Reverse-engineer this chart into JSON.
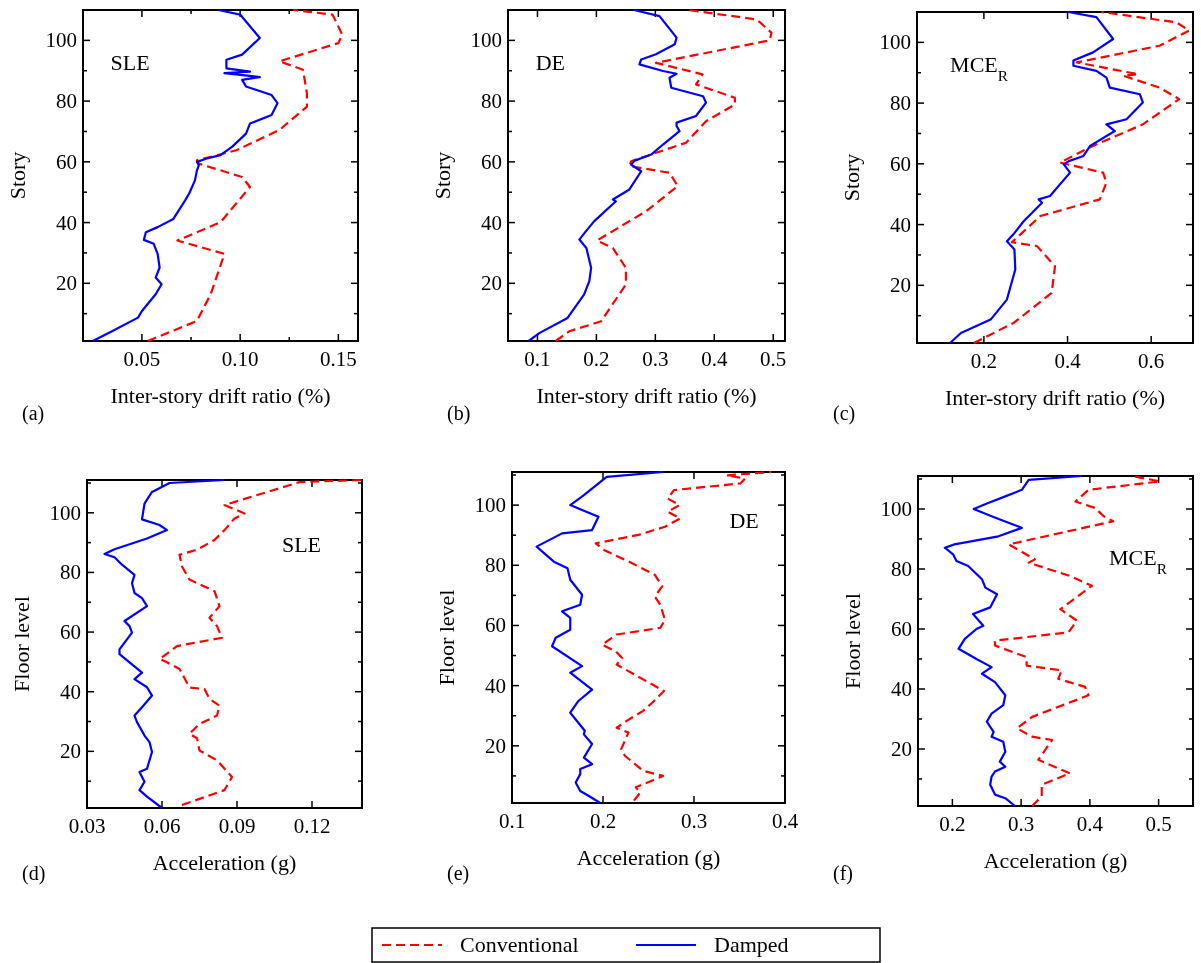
{
  "chart_data": [
    {
      "type": "line",
      "xlabel": "Inter-story drift ratio (%)",
      "ylabel": "Story",
      "annotations": [
        "(a)",
        "SLE"
      ],
      "legend": "bottom",
      "xlim": [
        0.02,
        0.16
      ],
      "xticks": [
        0.05,
        {
          "value": 0.075,
          "label": null
        },
        {
          "value": 0.1,
          "label": "0.10"
        },
        {
          "value": 0.125,
          "label": null
        },
        0.15
      ],
      "ylim": [
        1,
        110
      ],
      "yticks": [
        {
          "value": 10,
          "label": null
        },
        20,
        {
          "value": 30,
          "label": null
        },
        40,
        {
          "value": 50,
          "label": null
        },
        60,
        {
          "value": 70,
          "label": null
        },
        80,
        {
          "value": 90,
          "label": null
        },
        100
      ],
      "series": [
        {
          "name": "Conventional",
          "color": "#ff0000",
          "line_style": "dashed",
          "x": [
            0.053,
            0.078,
            0.085,
            0.092,
            0.068,
            0.09,
            0.105,
            0.101,
            0.079,
            0.078,
            0.098,
            0.12,
            0.134,
            0.134,
            0.132,
            0.12,
            0.15,
            0.152,
            0.147,
            0.127
          ],
          "values": [
            1,
            7.6,
            16.4,
            29.7,
            34.1,
            40.1,
            51.7,
            55,
            59.4,
            60.5,
            63.8,
            70.5,
            78.2,
            82.6,
            90.3,
            93.1,
            99.1,
            101.9,
            108.5,
            110
          ]
        },
        {
          "name": "Damped",
          "color": "#0000ff",
          "line_style": "solid",
          "x": [
            0.025,
            0.035,
            0.048,
            0.05,
            0.057,
            0.06,
            0.057,
            0.059,
            0.058,
            0.056,
            0.051,
            0.052,
            0.058,
            0.066,
            0.072,
            0.074,
            0.077,
            0.078,
            0.079,
            0.078,
            0.083,
            0.09,
            0.096,
            0.103,
            0.105,
            0.116,
            0.119,
            0.116,
            0.103,
            0.101,
            0.11,
            0.092,
            0.105,
            0.093,
            0.093,
            0.101,
            0.11,
            0.1,
            0.089
          ],
          "values": [
            1,
            4.3,
            8.7,
            10.9,
            16.4,
            19.7,
            21.9,
            25.2,
            29.7,
            33,
            34.3,
            36.8,
            38.5,
            41.2,
            47.3,
            49.5,
            53.9,
            57.2,
            58.9,
            60,
            61.1,
            62.2,
            65,
            69.3,
            72.6,
            75.4,
            79.3,
            82,
            84.8,
            87,
            87.9,
            89.2,
            89.7,
            90.8,
            93.6,
            95.3,
            100.8,
            108.5,
            110
          ]
        }
      ]
    },
    {
      "type": "line",
      "xlabel": "Inter-story drift ratio (%)",
      "ylabel": "Story",
      "annotations": [
        "(b)",
        "DE"
      ],
      "xlim": [
        0.05,
        0.52
      ],
      "xticks": [
        0.1,
        0.2,
        0.3,
        0.4,
        0.5
      ],
      "ylim": [
        1,
        110
      ],
      "yticks": [
        {
          "value": 10,
          "label": null
        },
        20,
        {
          "value": 30,
          "label": null
        },
        40,
        {
          "value": 50,
          "label": null
        },
        60,
        {
          "value": 70,
          "label": null
        },
        80,
        {
          "value": 90,
          "label": null
        },
        100
      ],
      "series": [
        {
          "color": "#ff0000",
          "line_style": "dashed",
          "x": [
            0.131,
            0.154,
            0.208,
            0.25,
            0.25,
            0.228,
            0.201,
            0.284,
            0.338,
            0.324,
            0.256,
            0.259,
            0.352,
            0.386,
            0.435,
            0.435,
            0.369,
            0.38,
            0.301,
            0.494,
            0.497,
            0.472,
            0.355
          ],
          "values": [
            1,
            4.2,
            7.5,
            19.6,
            25.1,
            31.6,
            34.1,
            43.7,
            52,
            56.4,
            58.6,
            60.2,
            66.3,
            73.4,
            78.9,
            81.1,
            85.5,
            88.8,
            92.6,
            100,
            102.5,
            106.9,
            110
          ]
        },
        {
          "color": "#0000ff",
          "line_style": "solid",
          "x": [
            0.085,
            0.103,
            0.151,
            0.179,
            0.188,
            0.191,
            0.183,
            0.171,
            0.182,
            0.196,
            0.233,
            0.228,
            0.256,
            0.276,
            0.259,
            0.265,
            0.293,
            0.313,
            0.341,
            0.336,
            0.336,
            0.369,
            0.386,
            0.381,
            0.327,
            0.324,
            0.336,
            0.313,
            0.273,
            0.276,
            0.301,
            0.333,
            0.336,
            0.307,
            0.264
          ],
          "values": [
            1,
            3.6,
            8.6,
            16.3,
            20.7,
            25.1,
            31.6,
            34.4,
            37.1,
            40.4,
            47,
            47.6,
            50.9,
            56.9,
            59.1,
            60.4,
            62.4,
            65.7,
            70.1,
            71.8,
            72.9,
            75.1,
            79.5,
            81.6,
            84.4,
            87.7,
            89,
            89.9,
            92.1,
            93.7,
            95.4,
            98.7,
            100.9,
            108,
            110
          ]
        }
      ]
    },
    {
      "type": "line",
      "xlabel": "Inter-story drift ratio (%)",
      "ylabel": "Story",
      "annotations": [
        "(c)",
        "MCE$_{R}$"
      ],
      "xlim": [
        0.04,
        0.7
      ],
      "xticks": [
        0.2,
        0.4,
        0.6
      ],
      "ylim": [
        1,
        110
      ],
      "yticks": [
        {
          "value": 10,
          "label": null
        },
        20,
        {
          "value": 30,
          "label": null
        },
        40,
        {
          "value": 50,
          "label": null
        },
        60,
        {
          "value": 70,
          "label": null
        },
        80,
        {
          "value": 90,
          "label": null
        },
        100
      ],
      "series": [
        {
          "color": "#ff0000",
          "line_style": "dashed",
          "x": [
            0.176,
            0.271,
            0.362,
            0.37,
            0.327,
            0.267,
            0.335,
            0.477,
            0.493,
            0.485,
            0.382,
            0.451,
            0.58,
            0.667,
            0.62,
            0.533,
            0.569,
            0.422,
            0.62,
            0.691,
            0.66,
            0.481
          ],
          "values": [
            1,
            7.6,
            17.5,
            26.3,
            32.9,
            34.2,
            42.8,
            48.3,
            53.8,
            57.1,
            60.4,
            65.3,
            73,
            81.3,
            85.1,
            89,
            89.5,
            93.4,
            98.9,
            103.9,
            106.6,
            110
          ]
        },
        {
          "color": "#0000ff",
          "line_style": "solid",
          "x": [
            0.119,
            0.145,
            0.216,
            0.255,
            0.275,
            0.273,
            0.255,
            0.27,
            0.295,
            0.339,
            0.331,
            0.358,
            0.406,
            0.391,
            0.403,
            0.438,
            0.454,
            0.513,
            0.493,
            0.541,
            0.58,
            0.573,
            0.501,
            0.493,
            0.469,
            0.414,
            0.414,
            0.461,
            0.509,
            0.469,
            0.402
          ],
          "values": [
            1,
            4.3,
            8.7,
            15.3,
            25.2,
            31.8,
            34.5,
            36.7,
            41.1,
            47.2,
            48.3,
            49.4,
            57.1,
            59.8,
            60.9,
            62.6,
            65.9,
            70.8,
            73,
            74.7,
            80.2,
            82.9,
            85.1,
            88.4,
            90.6,
            92.3,
            94,
            96.7,
            101.1,
            108.3,
            110
          ]
        }
      ]
    },
    {
      "type": "line",
      "xlabel": "Acceleration (g)",
      "ylabel": "Floor level",
      "annotations": [
        "(d)",
        "SLE"
      ],
      "xlim": [
        0.03,
        0.14
      ],
      "xticks": [
        0.03,
        0.06,
        0.09,
        0.12
      ],
      "ylim": [
        1,
        111
      ],
      "yticks": [
        {
          "value": 10,
          "label": null
        },
        20,
        {
          "value": 30,
          "label": null
        },
        40,
        {
          "value": 50,
          "label": null
        },
        60,
        {
          "value": 70,
          "label": null
        },
        80,
        {
          "value": 90,
          "label": null
        },
        100,
        {
          "value": 110,
          "label": null
        }
      ],
      "series": [
        {
          "color": "#ff0000",
          "line_style": "dashed",
          "x": [
            0.068,
            0.085,
            0.088,
            0.082,
            0.075,
            0.074,
            0.071,
            0.075,
            0.082,
            0.083,
            0.079,
            0.077,
            0.071,
            0.067,
            0.061,
            0.059,
            0.066,
            0.084,
            0.082,
            0.079,
            0.083,
            0.081,
            0.071,
            0.068,
            0.067,
            0.074,
            0.081,
            0.085,
            0.089,
            0.093,
            0.085,
            0.115,
            0.14
          ],
          "values": [
            2,
            7,
            11.4,
            17,
            20.3,
            24.4,
            25.9,
            29.2,
            32,
            35.3,
            37.6,
            40.9,
            41.4,
            47.6,
            50.3,
            50.9,
            55.3,
            58.1,
            62,
            64.8,
            68.7,
            73.7,
            77.6,
            82,
            85.9,
            87.6,
            90.9,
            94.2,
            98.1,
            99.8,
            102.6,
            110.3,
            111
          ]
        },
        {
          "color": "#0000ff",
          "line_style": "solid",
          "x": [
            0.06,
            0.054,
            0.051,
            0.053,
            0.051,
            0.054,
            0.056,
            0.055,
            0.053,
            0.05,
            0.049,
            0.052,
            0.056,
            0.054,
            0.049,
            0.052,
            0.043,
            0.043,
            0.048,
            0.047,
            0.045,
            0.054,
            0.052,
            0.049,
            0.048,
            0.049,
            0.044,
            0.041,
            0.037,
            0.041,
            0.054,
            0.062,
            0.059,
            0.052,
            0.053,
            0.056,
            0.063,
            0.085
          ],
          "values": [
            1,
            4.8,
            7,
            9.8,
            13.1,
            14.2,
            19.8,
            23.1,
            25.3,
            29.8,
            32,
            34.8,
            38.7,
            41.5,
            44.2,
            46.4,
            52.6,
            54.2,
            59.8,
            62,
            63.7,
            68.7,
            71.4,
            73.1,
            76.4,
            79.2,
            82.6,
            85.1,
            86.2,
            87.8,
            91.4,
            94.2,
            95.9,
            97.8,
            103.1,
            107,
            110,
            111
          ]
        }
      ]
    },
    {
      "type": "line",
      "xlabel": "Acceleration (g)",
      "ylabel": "Floor level",
      "annotations": [
        "(e)",
        "DE"
      ],
      "xlim": [
        0.1,
        0.4
      ],
      "xticks": [
        0.1,
        0.2,
        0.3,
        0.4
      ],
      "ylim": [
        1,
        111
      ],
      "yticks": [
        {
          "value": 10,
          "label": null
        },
        20,
        {
          "value": 30,
          "label": null
        },
        40,
        {
          "value": 50,
          "label": null
        },
        60,
        {
          "value": 70,
          "label": null
        },
        80,
        {
          "value": 90,
          "label": null
        },
        100,
        {
          "value": 110,
          "label": null
        }
      ],
      "series": [
        {
          "color": "#ff0000",
          "line_style": "dashed",
          "x": [
            0.234,
            0.241,
            0.236,
            0.266,
            0.244,
            0.224,
            0.22,
            0.228,
            0.215,
            0.226,
            0.244,
            0.254,
            0.267,
            0.215,
            0.221,
            0.214,
            0.199,
            0.215,
            0.263,
            0.268,
            0.263,
            0.257,
            0.265,
            0.257,
            0.232,
            0.201,
            0.192,
            0.239,
            0.268,
            0.285,
            0.271,
            0.284,
            0.271,
            0.278,
            0.351,
            0.356,
            0.336,
            0.385
          ],
          "values": [
            1.8,
            4.5,
            6.2,
            10,
            11.7,
            16.7,
            18.9,
            24.4,
            26,
            28.3,
            31.6,
            34.3,
            38.2,
            47,
            49.2,
            51.4,
            53.6,
            57,
            59.2,
            61.9,
            66.9,
            69.6,
            73,
            76.8,
            80.7,
            85.1,
            87.3,
            90.1,
            92.8,
            95.6,
            97.8,
            100,
            102.2,
            105,
            107.2,
            108.8,
            109.9,
            111
          ]
        },
        {
          "color": "#0000ff",
          "line_style": "solid",
          "x": [
            0.197,
            0.184,
            0.175,
            0.17,
            0.175,
            0.175,
            0.188,
            0.179,
            0.188,
            0.179,
            0.18,
            0.164,
            0.173,
            0.188,
            0.164,
            0.177,
            0.144,
            0.148,
            0.164,
            0.164,
            0.155,
            0.175,
            0.177,
            0.164,
            0.161,
            0.146,
            0.127,
            0.155,
            0.188,
            0.195,
            0.164,
            0.179,
            0.204,
            0.266
          ],
          "values": [
            1,
            3.4,
            5,
            7.8,
            10.6,
            12.3,
            13.9,
            16.1,
            20.6,
            23.8,
            25,
            31,
            34.9,
            38.7,
            44.3,
            46.5,
            53.1,
            55.9,
            58.6,
            62.5,
            64.7,
            66.9,
            70.2,
            75.2,
            79,
            81.2,
            86.2,
            90.6,
            91.7,
            96.1,
            100,
            103.3,
            109.4,
            111
          ]
        }
      ]
    },
    {
      "type": "line",
      "xlabel": "Acceleration (g)",
      "ylabel": "Floor level",
      "annotations": [
        "(f)",
        "MCE$_{R}$"
      ],
      "xlim": [
        0.15,
        0.55
      ],
      "xticks": [
        0.2,
        0.3,
        0.4,
        0.5
      ],
      "ylim": [
        1,
        111
      ],
      "yticks": [
        {
          "value": 10,
          "label": null
        },
        20,
        {
          "value": 30,
          "label": null
        },
        40,
        {
          "value": 50,
          "label": null
        },
        60,
        {
          "value": 70,
          "label": null
        },
        80,
        {
          "value": 90,
          "label": null
        },
        100,
        {
          "value": 110,
          "label": null
        }
      ],
      "series": [
        {
          "color": "#ff0000",
          "line_style": "dashed",
          "x": [
            0.316,
            0.33,
            0.33,
            0.371,
            0.325,
            0.345,
            0.316,
            0.294,
            0.316,
            0.398,
            0.393,
            0.354,
            0.359,
            0.308,
            0.308,
            0.262,
            0.262,
            0.369,
            0.381,
            0.357,
            0.403,
            0.371,
            0.311,
            0.32,
            0.282,
            0.434,
            0.42,
            0.408,
            0.379,
            0.398,
            0.502,
            0.466
          ],
          "values": [
            1,
            4.2,
            8.1,
            11.9,
            16.4,
            23,
            24.1,
            26.9,
            30.7,
            37.9,
            40.7,
            43.4,
            46.2,
            47.8,
            50.6,
            54.5,
            56.1,
            58.9,
            62.8,
            66.6,
            74.4,
            77.7,
            82.1,
            83.2,
            88.2,
            95.9,
            97.6,
            100.3,
            102.5,
            106.4,
            109.2,
            110.8
          ]
        },
        {
          "color": "#0000ff",
          "line_style": "solid",
          "x": [
            0.291,
            0.277,
            0.262,
            0.255,
            0.257,
            0.262,
            0.277,
            0.269,
            0.277,
            0.274,
            0.257,
            0.26,
            0.25,
            0.257,
            0.274,
            0.277,
            0.262,
            0.243,
            0.257,
            0.235,
            0.209,
            0.218,
            0.235,
            0.245,
            0.23,
            0.255,
            0.265,
            0.248,
            0.243,
            0.223,
            0.206,
            0.201,
            0.189,
            0.203,
            0.267,
            0.301,
            0.257,
            0.231,
            0.252,
            0.277,
            0.301,
            0.311,
            0.388
          ],
          "values": [
            1,
            3.6,
            4.8,
            8.1,
            10.8,
            12.5,
            14.1,
            15.8,
            19.1,
            22.4,
            24.1,
            25.7,
            29.1,
            31.8,
            34.6,
            37.9,
            42.3,
            45.1,
            47.3,
            50,
            53.4,
            56.7,
            60,
            61.1,
            65,
            67.2,
            71.6,
            73.8,
            76.6,
            81,
            82.7,
            84.9,
            87.1,
            88.2,
            90.9,
            93.7,
            97.6,
            100,
            102,
            104.2,
            106.4,
            109.7,
            111
          ]
        }
      ]
    }
  ]
}
